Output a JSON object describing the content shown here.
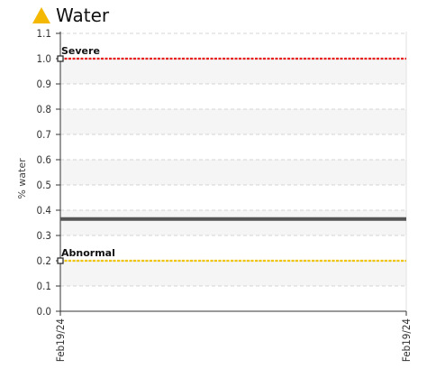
{
  "header": {
    "title": "Water",
    "icon": "warning-triangle-icon",
    "icon_color": "#f5b800"
  },
  "chart_data": {
    "type": "line",
    "title": "Water",
    "ylabel": "% water",
    "xlabel": "",
    "ylim": [
      0.0,
      1.1
    ],
    "yticks": [
      0.0,
      0.1,
      0.2,
      0.3,
      0.4,
      0.5,
      0.6,
      0.7,
      0.8,
      0.9,
      1.0,
      1.1
    ],
    "ytick_labels": [
      "0.0",
      "0.1",
      "0.2",
      "0.3",
      "0.4",
      "0.5",
      "0.6",
      "0.7",
      "0.8",
      "0.9",
      "1.0",
      "1.1"
    ],
    "x_tick_labels": [
      "Feb19/24",
      "Feb19/24"
    ],
    "grid": true,
    "series": [
      {
        "values": [
          0.365,
          0.365
        ],
        "color": "#555555"
      }
    ],
    "thresholds": [
      {
        "label": "Severe",
        "value": 1.0,
        "color": "#e8201f"
      },
      {
        "label": "Abnormal",
        "value": 0.2,
        "color": "#f0c400"
      }
    ]
  }
}
